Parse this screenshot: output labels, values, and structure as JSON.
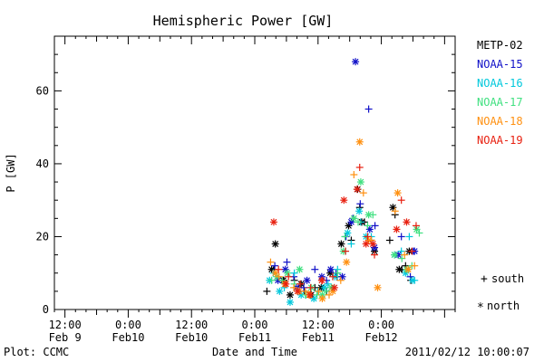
{
  "chart_data": {
    "type": "scatter",
    "title": "Hemispheric Power [GW]",
    "xlabel": "Date and Time",
    "ylabel": "P [GW]",
    "ylim": [
      0,
      75
    ],
    "xlim_hours": [
      -14,
      62
    ],
    "y_ticks": [
      "0",
      "20",
      "40",
      "60"
    ],
    "x_ticks": [
      {
        "hour": -12,
        "line1": "12:00",
        "line2": "Feb 9"
      },
      {
        "hour": 0,
        "line1": "0:00",
        "line2": "Feb10"
      },
      {
        "hour": 12,
        "line1": "12:00",
        "line2": "Feb10"
      },
      {
        "hour": 24,
        "line1": "0:00",
        "line2": "Feb11"
      },
      {
        "hour": 36,
        "line1": "12:00",
        "line2": "Feb11"
      },
      {
        "hour": 48,
        "line1": "0:00",
        "line2": "Feb12"
      }
    ],
    "legend_position": "right",
    "marker_legend": {
      "south_symbol": "+",
      "south_label": "south",
      "north_symbol": "*",
      "north_label": "north"
    },
    "series": [
      {
        "name": "METP-02",
        "color": "#000000",
        "south": [
          [
            26.3,
            5
          ],
          [
            27.6,
            11
          ],
          [
            29.5,
            8
          ],
          [
            31.5,
            8
          ],
          [
            33.4,
            5
          ],
          [
            35.4,
            6
          ],
          [
            37.6,
            5
          ],
          [
            39.6,
            9
          ],
          [
            42.3,
            19
          ],
          [
            43.9,
            28
          ],
          [
            44.8,
            24
          ],
          [
            46.1,
            19
          ],
          [
            49.6,
            19
          ],
          [
            50.6,
            26
          ],
          [
            51.9,
            11
          ],
          [
            52.6,
            12
          ],
          [
            53.6,
            8
          ]
        ],
        "north": [
          [
            27.2,
            11
          ],
          [
            27.9,
            18
          ],
          [
            29.4,
            8
          ],
          [
            30.7,
            4
          ],
          [
            32.8,
            7
          ],
          [
            34.7,
            4
          ],
          [
            36.6,
            6
          ],
          [
            38.3,
            10
          ],
          [
            40.4,
            18
          ],
          [
            41.8,
            23
          ],
          [
            43.5,
            33
          ],
          [
            44.3,
            24
          ],
          [
            46.7,
            16
          ],
          [
            50.2,
            28
          ],
          [
            51.4,
            11
          ],
          [
            53.3,
            16
          ]
        ]
      },
      {
        "name": "NOAA-15",
        "color": "#1010c8",
        "south": [
          [
            27.8,
            12
          ],
          [
            30.1,
            13
          ],
          [
            31.4,
            9
          ],
          [
            33.3,
            6
          ],
          [
            35.4,
            11
          ],
          [
            37.6,
            8
          ],
          [
            39.4,
            10
          ],
          [
            41.3,
            20
          ],
          [
            42.6,
            25
          ],
          [
            44.0,
            29
          ],
          [
            45.6,
            55
          ],
          [
            46.8,
            23
          ],
          [
            51.8,
            20
          ],
          [
            53.5,
            9
          ],
          [
            54.1,
            16
          ]
        ],
        "north": [
          [
            28.4,
            8
          ],
          [
            29.8,
            11
          ],
          [
            31.9,
            6
          ],
          [
            33.9,
            8
          ],
          [
            36.7,
            9
          ],
          [
            38.4,
            11
          ],
          [
            40.6,
            9
          ],
          [
            42.3,
            24
          ],
          [
            43.1,
            68
          ],
          [
            45.8,
            22
          ],
          [
            46.7,
            17
          ],
          [
            51.2,
            15
          ],
          [
            54.3,
            16
          ]
        ]
      },
      {
        "name": "NOAA-16",
        "color": "#00c8dc",
        "south": [
          [
            27.5,
            10
          ],
          [
            29.6,
            6
          ],
          [
            31.5,
            10
          ],
          [
            33.7,
            4
          ],
          [
            35.9,
            5
          ],
          [
            37.9,
            7
          ],
          [
            39.7,
            11
          ],
          [
            41.2,
            16
          ],
          [
            42.3,
            18
          ],
          [
            44.1,
            24
          ],
          [
            46.1,
            20
          ],
          [
            51.8,
            16
          ],
          [
            53.3,
            20
          ],
          [
            54.3,
            8
          ]
        ],
        "north": [
          [
            26.8,
            8
          ],
          [
            28.7,
            5
          ],
          [
            30.7,
            2
          ],
          [
            32.8,
            4
          ],
          [
            35.2,
            3
          ],
          [
            37.2,
            6
          ],
          [
            39.2,
            9
          ],
          [
            41.6,
            21
          ],
          [
            43.8,
            27
          ],
          [
            45.1,
            20
          ],
          [
            50.5,
            15
          ],
          [
            52.6,
            10
          ],
          [
            53.9,
            8
          ]
        ]
      },
      {
        "name": "NOAA-17",
        "color": "#40e080",
        "south": [
          [
            27.2,
            8
          ],
          [
            29.2,
            8
          ],
          [
            31.5,
            7
          ],
          [
            33.6,
            4
          ],
          [
            35.8,
            4
          ],
          [
            37.5,
            5
          ],
          [
            39.7,
            10
          ],
          [
            41.1,
            20
          ],
          [
            43.6,
            24
          ],
          [
            45.4,
            23
          ],
          [
            46.4,
            26
          ],
          [
            51.9,
            14
          ],
          [
            53.8,
            12
          ],
          [
            55.2,
            21
          ]
        ],
        "north": [
          [
            28.2,
            9
          ],
          [
            30.2,
            10
          ],
          [
            32.5,
            11
          ],
          [
            34.7,
            6
          ],
          [
            36.8,
            4
          ],
          [
            38.5,
            6
          ],
          [
            40.8,
            16
          ],
          [
            42.8,
            25
          ],
          [
            44.1,
            35
          ],
          [
            45.6,
            26
          ],
          [
            50.5,
            15
          ],
          [
            52.8,
            11
          ],
          [
            54.7,
            22
          ]
        ]
      },
      {
        "name": "NOAA-18",
        "color": "#ff9010",
        "south": [
          [
            27.0,
            13
          ],
          [
            28.6,
            9
          ],
          [
            31.4,
            6
          ],
          [
            33.6,
            5
          ],
          [
            36.1,
            5
          ],
          [
            38.1,
            4
          ],
          [
            40.3,
            8
          ],
          [
            42.8,
            37
          ],
          [
            44.6,
            32
          ],
          [
            46.1,
            19
          ],
          [
            50.6,
            27
          ],
          [
            52.4,
            15
          ],
          [
            54.3,
            12
          ]
        ],
        "north": [
          [
            27.9,
            10
          ],
          [
            29.7,
            7
          ],
          [
            32.4,
            5
          ],
          [
            34.3,
            4
          ],
          [
            36.8,
            3
          ],
          [
            38.8,
            5
          ],
          [
            41.4,
            13
          ],
          [
            43.9,
            46
          ],
          [
            45.6,
            19
          ],
          [
            47.3,
            6
          ],
          [
            51.1,
            32
          ],
          [
            53.1,
            11
          ]
        ]
      },
      {
        "name": "NOAA-19",
        "color": "#e82010",
        "south": [
          [
            28.5,
            11
          ],
          [
            30.4,
            9
          ],
          [
            32.6,
            7
          ],
          [
            34.6,
            6
          ],
          [
            36.8,
            8
          ],
          [
            38.8,
            9
          ],
          [
            41.2,
            16
          ],
          [
            43.9,
            39
          ],
          [
            45.4,
            20
          ],
          [
            46.7,
            15
          ],
          [
            51.8,
            30
          ],
          [
            53.8,
            16
          ],
          [
            54.6,
            23
          ]
        ],
        "north": [
          [
            27.6,
            24
          ],
          [
            29.9,
            7
          ],
          [
            32.1,
            5
          ],
          [
            34.5,
            4
          ],
          [
            36.7,
            8
          ],
          [
            39.1,
            6
          ],
          [
            40.9,
            30
          ],
          [
            43.4,
            33
          ],
          [
            45.1,
            18
          ],
          [
            46.4,
            18
          ],
          [
            50.9,
            22
          ],
          [
            52.8,
            24
          ]
        ]
      }
    ]
  },
  "footer": {
    "left": "Plot: CCMC",
    "right": "2011/02/12 10:00:07"
  }
}
